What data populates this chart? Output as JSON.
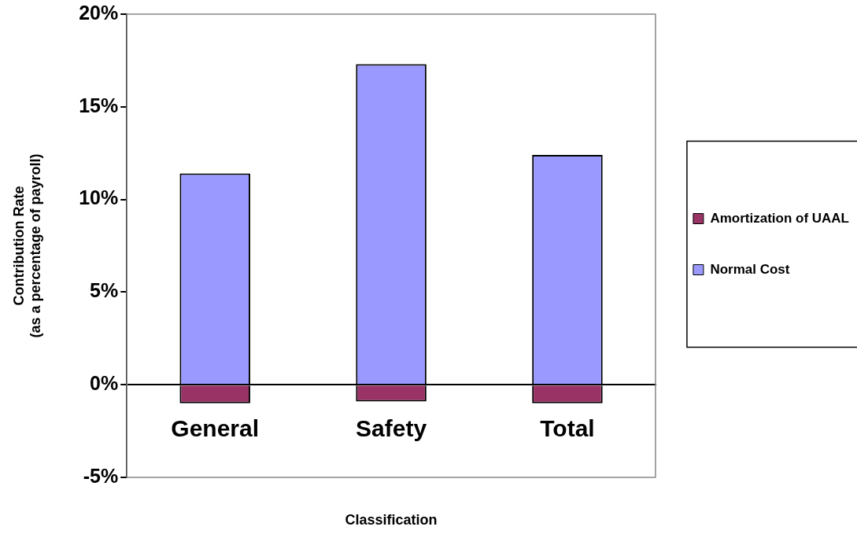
{
  "chart_data": {
    "type": "bar",
    "stacked": true,
    "xlabel": "Classification",
    "ylabel": "Contribution Rate\n(as a percentage of payroll)",
    "categories": [
      "General",
      "Safety",
      "Total"
    ],
    "series": [
      {
        "name": "Amortization of UAAL",
        "color": "#993366",
        "values": [
          -1.0,
          -0.9,
          -1.0
        ]
      },
      {
        "name": "Normal Cost",
        "color": "#9999ff",
        "values": [
          11.4,
          17.3,
          12.4
        ]
      }
    ],
    "ylim": [
      -5,
      20
    ],
    "yticks": [
      {
        "value": -5,
        "label": "-5%"
      },
      {
        "value": 0,
        "label": "0%"
      },
      {
        "value": 5,
        "label": "5%"
      },
      {
        "value": 10,
        "label": "10%"
      },
      {
        "value": 15,
        "label": "15%"
      },
      {
        "value": 20,
        "label": "20%"
      }
    ],
    "grid": false,
    "legend": "right"
  }
}
